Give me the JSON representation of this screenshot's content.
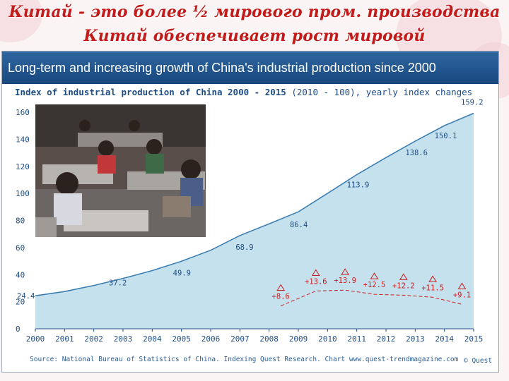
{
  "slide": {
    "title_line1": "Китай  - это более ½ мирового пром. производства",
    "title_line2": "Китай обеспечивает рост мировой промышленности"
  },
  "banner": "Long-term and increasing growth of China's industrial production since 2000",
  "chart_title": {
    "bold": "Index of industrial production of China 2000 - 2015",
    "normal": " (2010 - 100), yearly index changes"
  },
  "source": "Source: National Bureau of Statistics of China. Indexing Quest Research. Chart www.quest-trendmagazine.com",
  "copyright": "© Quest",
  "photo": {
    "icon": "factory-workers-photo"
  },
  "colors": {
    "title_red": "#c31a1a",
    "banner_blue": "#1e5a96",
    "area_fill": "#b6d9e8",
    "area_line": "#3d7fb0",
    "change_red": "#cc1f1f",
    "label_blue": "#1f4e85"
  },
  "chart_data": {
    "type": "area",
    "title": "Index of industrial production of China 2000 - 2015 (2010 - 100), yearly index changes",
    "x": [
      "2000",
      "2001",
      "2002",
      "2003",
      "2004",
      "2005",
      "2006",
      "2007",
      "2008",
      "2009",
      "2010",
      "2011",
      "2012",
      "2013",
      "2014",
      "2015"
    ],
    "ylim": [
      0,
      160
    ],
    "yticks": [
      0,
      20,
      40,
      60,
      80,
      100,
      120,
      140,
      160
    ],
    "grid": false,
    "series": [
      {
        "values": [
          24.4,
          27.5,
          32.0,
          37.2,
          43.0,
          49.9,
          58.0,
          68.9,
          77.5,
          86.4,
          100.0,
          113.9,
          126.5,
          138.6,
          150.1,
          159.2
        ]
      }
    ],
    "value_labels": [
      {
        "x": "2000",
        "value": 24.4,
        "text": "24.4"
      },
      {
        "x": "2003",
        "value": 37.2,
        "text": "37.2"
      },
      {
        "x": "2005",
        "value": 49.9,
        "text": "49.9"
      },
      {
        "x": "2007",
        "value": 68.9,
        "text": "68.9"
      },
      {
        "x": "2009",
        "value": 86.4,
        "text": "86.4"
      },
      {
        "x": "2011",
        "value": 113.9,
        "text": "113.9"
      },
      {
        "x": "2013",
        "value": 138.6,
        "text": "138.6"
      },
      {
        "x": "2014",
        "value": 150.1,
        "text": "150.1"
      },
      {
        "x": "2015",
        "value": 159.2,
        "text": "159.2"
      }
    ],
    "yearly_changes": [
      {
        "x": 2008.4,
        "value": 8.6,
        "text": "+8.6"
      },
      {
        "x": 2009.6,
        "value": 13.6,
        "text": "+13.6"
      },
      {
        "x": 2010.6,
        "value": 13.9,
        "text": "+13.9"
      },
      {
        "x": 2011.6,
        "value": 12.5,
        "text": "+12.5"
      },
      {
        "x": 2012.6,
        "value": 12.2,
        "text": "+12.2"
      },
      {
        "x": 2013.6,
        "value": 11.5,
        "text": "+11.5"
      },
      {
        "x": 2014.6,
        "value": 9.1,
        "text": "+9.1"
      }
    ]
  }
}
